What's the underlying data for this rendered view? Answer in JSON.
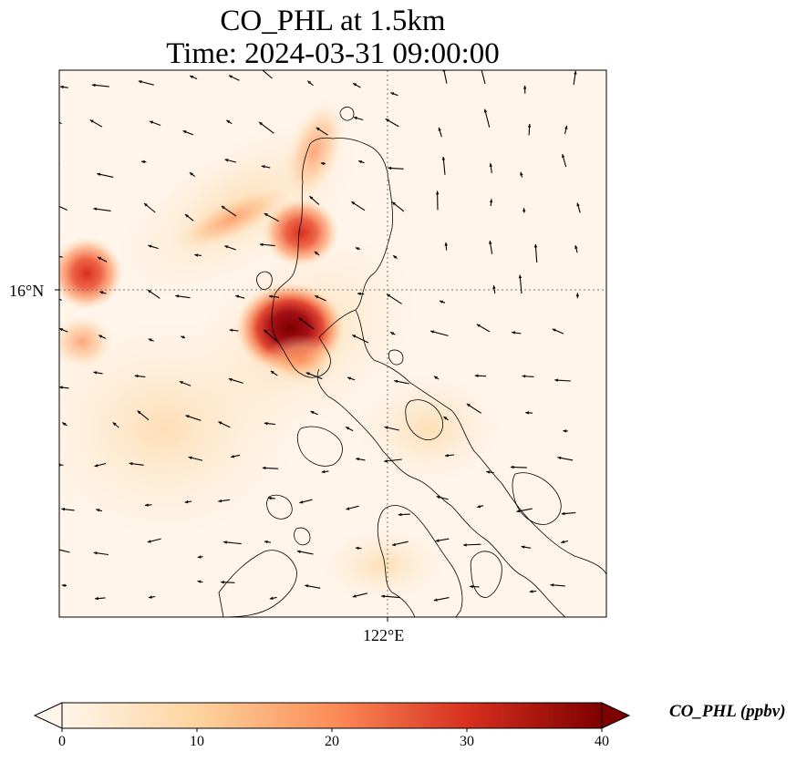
{
  "title": {
    "line1": "CO_PHL at 1.5km",
    "line2": "Time: 2024-03-31 09:00:00"
  },
  "map": {
    "lat_tick_label": "16°N",
    "lon_tick_label": "122°E",
    "gridlines": "dotted",
    "background_color": "#fff5eb",
    "coastline_color": "#000000",
    "wind_vectors": "black arrows",
    "hotspot_colors": [
      "#8b0000",
      "#b2131b",
      "#e8553a",
      "#f99b70"
    ]
  },
  "colorbar": {
    "label": "CO_PHL (ppbv)",
    "ticks": [
      "0",
      "10",
      "20",
      "30",
      "40"
    ],
    "min": 0,
    "max": 40,
    "extend": "both",
    "colormap": [
      "#fff5eb",
      "#fdd49e",
      "#fc8d59",
      "#d7301f",
      "#7f0000"
    ]
  }
}
